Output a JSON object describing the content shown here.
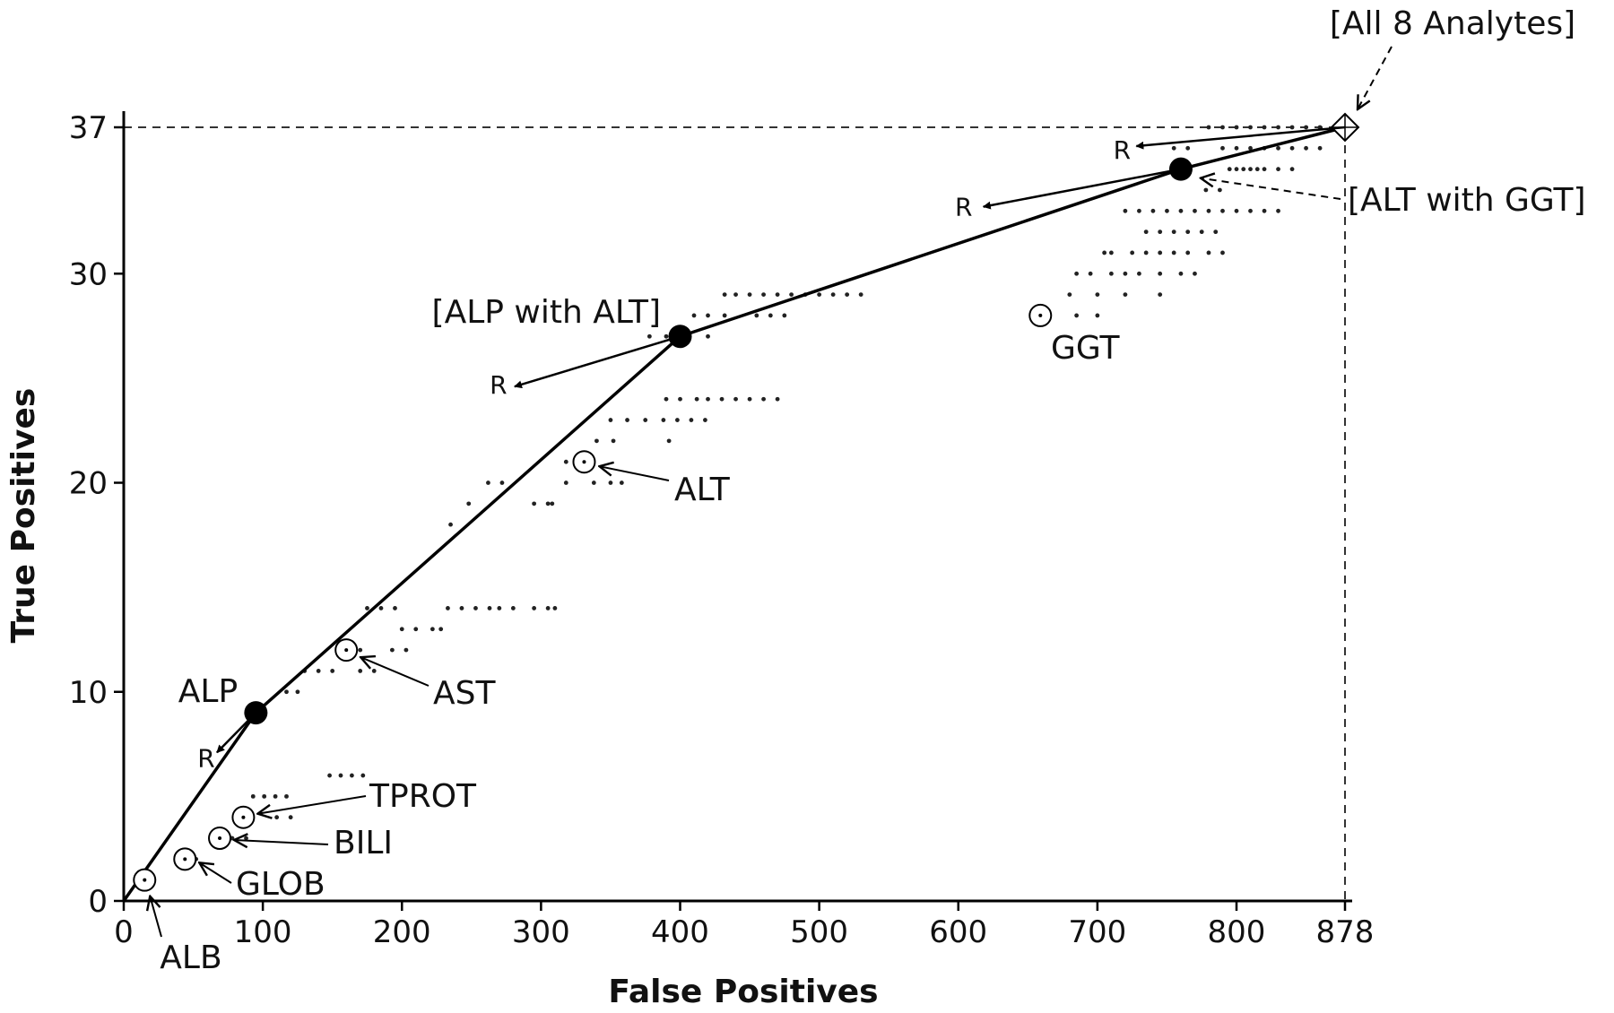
{
  "chart_data": {
    "type": "scatter",
    "title": "",
    "xlabel": "False Positives",
    "ylabel": "True Positives",
    "xlim": [
      0,
      878
    ],
    "ylim": [
      0,
      37
    ],
    "xticks": [
      "0",
      "100",
      "200",
      "300",
      "400",
      "500",
      "600",
      "700",
      "800",
      "878"
    ],
    "yticks": [
      "0",
      "10",
      "20",
      "30",
      "37"
    ],
    "xtick_values": [
      0,
      100,
      200,
      300,
      400,
      500,
      600,
      700,
      800,
      878
    ],
    "ytick_values": [
      0,
      10,
      20,
      30,
      37
    ],
    "grid": false,
    "reference_lines": [
      {
        "orientation": "horizontal",
        "value": 37,
        "style": "dashed"
      },
      {
        "orientation": "vertical",
        "value": 878,
        "style": "dashed"
      }
    ],
    "single_analytes": [
      {
        "label": "ALB",
        "x": 15,
        "y": 1
      },
      {
        "label": "GLOB",
        "x": 44,
        "y": 2
      },
      {
        "label": "BILI",
        "x": 69,
        "y": 3
      },
      {
        "label": "TPROT",
        "x": 86,
        "y": 4
      },
      {
        "label": "AST",
        "x": 160,
        "y": 12
      },
      {
        "label": "ALT",
        "x": 331,
        "y": 21
      },
      {
        "label": "GGT",
        "x": 659,
        "y": 28
      }
    ],
    "hull_points": [
      {
        "label": "",
        "x": 0,
        "y": 0
      },
      {
        "label": "ALP",
        "x": 95,
        "y": 9
      },
      {
        "label": "[ALP with ALT]",
        "x": 400,
        "y": 27
      },
      {
        "label": "[ALT with GGT]",
        "x": 760,
        "y": 35
      },
      {
        "label": "[All 8 Analytes]",
        "x": 878,
        "y": 37
      }
    ],
    "r_vectors": [
      {
        "label": "R",
        "from": [
          95,
          9
        ],
        "to": [
          67,
          7.1
        ]
      },
      {
        "label": "R",
        "from": [
          400,
          27
        ],
        "to": [
          281,
          24.6
        ]
      },
      {
        "label": "R",
        "from": [
          760,
          35
        ],
        "to": [
          618,
          33.2
        ]
      },
      {
        "label": "R",
        "from": [
          878,
          37
        ],
        "to": [
          728,
          36.1
        ]
      }
    ],
    "combination_points": [
      {
        "y": 37,
        "x": [
          780,
          790,
          800,
          810,
          820,
          830,
          840,
          850,
          860,
          870
        ]
      },
      {
        "y": 36,
        "x": [
          755,
          765,
          790,
          800,
          810,
          820,
          830,
          840,
          850,
          860
        ]
      },
      {
        "y": 35,
        "x": [
          795,
          800,
          805,
          810,
          815,
          820,
          830,
          840
        ]
      },
      {
        "y": 34,
        "x": [
          778,
          788
        ]
      },
      {
        "y": 33,
        "x": [
          720,
          730,
          740,
          750,
          760,
          770,
          780,
          790,
          800,
          810,
          820,
          830
        ]
      },
      {
        "y": 32,
        "x": [
          735,
          745,
          755,
          765,
          775,
          785
        ]
      },
      {
        "y": 31,
        "x": [
          705,
          710,
          725,
          735,
          745,
          755,
          765,
          780,
          790
        ]
      },
      {
        "y": 30,
        "x": [
          685,
          695,
          710,
          720,
          730,
          745,
          760,
          770
        ]
      },
      {
        "y": 29,
        "x": [
          432,
          440,
          450,
          460,
          470,
          480,
          490,
          500,
          510,
          520,
          530,
          680,
          700,
          720,
          745
        ]
      },
      {
        "y": 28,
        "x": [
          410,
          420,
          432,
          455,
          465,
          475,
          685,
          700
        ]
      },
      {
        "y": 27,
        "x": [
          378,
          390,
          405,
          420
        ]
      },
      {
        "y": 24,
        "x": [
          390,
          400,
          412,
          420,
          430,
          440,
          450,
          460,
          470
        ]
      },
      {
        "y": 23,
        "x": [
          350,
          362,
          375,
          388,
          398,
          408,
          418
        ]
      },
      {
        "y": 22,
        "x": [
          340,
          352,
          392
        ]
      },
      {
        "y": 21,
        "x": [
          318,
          330
        ]
      },
      {
        "y": 20,
        "x": [
          262,
          272,
          318,
          338,
          350,
          358
        ]
      },
      {
        "y": 19,
        "x": [
          248,
          295,
          305,
          308
        ]
      },
      {
        "y": 18,
        "x": [
          235
        ]
      },
      {
        "y": 14,
        "x": [
          175,
          185,
          195,
          233,
          243,
          253,
          263,
          270,
          280,
          295,
          305,
          310
        ]
      },
      {
        "y": 13,
        "x": [
          200,
          210,
          222,
          228
        ]
      },
      {
        "y": 12,
        "x": [
          170,
          193,
          203
        ]
      },
      {
        "y": 11,
        "x": [
          130,
          140,
          150,
          170,
          180
        ]
      },
      {
        "y": 10,
        "x": [
          117,
          125
        ]
      },
      {
        "y": 6,
        "x": [
          148,
          156,
          164,
          172
        ]
      },
      {
        "y": 5,
        "x": [
          93,
          101,
          109,
          117
        ]
      },
      {
        "y": 4,
        "x": [
          110,
          120
        ]
      },
      {
        "y": 3,
        "x": [
          78,
          88
        ]
      },
      {
        "y": 2,
        "x": [
          52
        ]
      }
    ]
  }
}
